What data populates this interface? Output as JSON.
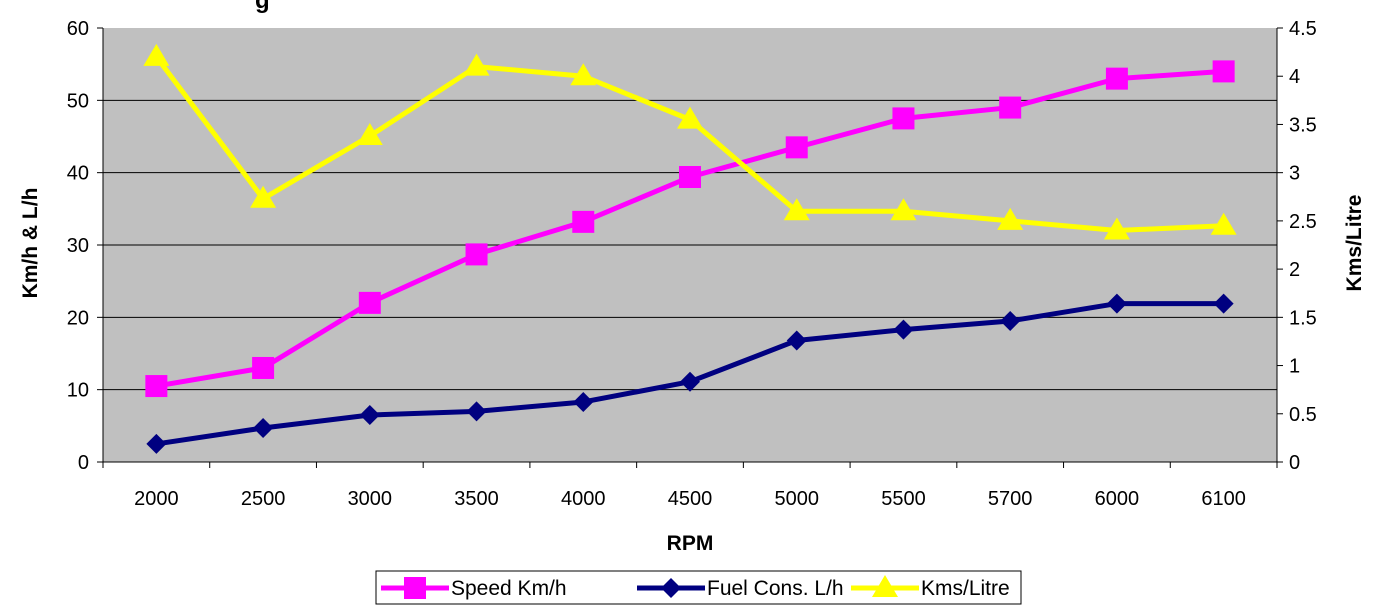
{
  "chart_data": {
    "type": "line",
    "title": "g",
    "title_note": "Title text is cropped at the top edge; only fragments visible",
    "xlabel": "RPM",
    "ylabel": "Km/h & L/h",
    "y2label": "Kms/Litre",
    "categories": [
      "2000",
      "2500",
      "3000",
      "3500",
      "4000",
      "4500",
      "5000",
      "5500",
      "5700",
      "6000",
      "6100"
    ],
    "ylim": [
      0,
      60
    ],
    "yticks": [
      "0",
      "10",
      "20",
      "30",
      "40",
      "50",
      "60"
    ],
    "y2lim": [
      0,
      4.5
    ],
    "y2ticks": [
      "0",
      "0.5",
      "1",
      "1.5",
      "2",
      "2.5",
      "3",
      "3.5",
      "4",
      "4.5"
    ],
    "grid": true,
    "plot_background": "#c0c0c0",
    "legend_position": "bottom",
    "series": [
      {
        "name": "Speed Km/h",
        "axis": "left",
        "color": "#ff00ff",
        "marker": "square",
        "values": [
          10.5,
          13.0,
          22.0,
          28.7,
          33.2,
          39.4,
          43.5,
          47.5,
          49.0,
          53.0,
          54.0
        ]
      },
      {
        "name": "Fuel Cons. L/h",
        "axis": "left",
        "color": "#000080",
        "marker": "diamond",
        "values": [
          2.5,
          4.7,
          6.5,
          7.0,
          8.3,
          11.1,
          16.8,
          18.3,
          19.5,
          21.9,
          21.9
        ]
      },
      {
        "name": "Kms/Litre",
        "axis": "right",
        "color": "#ffff00",
        "marker": "triangle",
        "values": [
          4.2,
          2.73,
          3.38,
          4.1,
          4.0,
          3.55,
          2.6,
          2.6,
          2.5,
          2.4,
          2.45
        ]
      }
    ]
  }
}
